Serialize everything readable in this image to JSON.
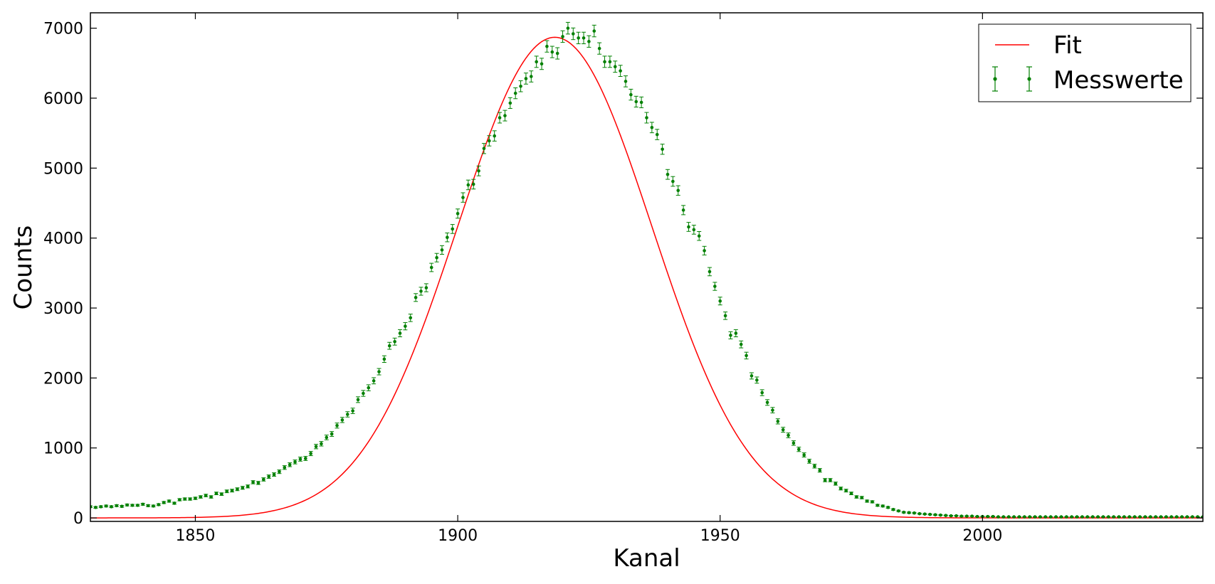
{
  "chart_data": {
    "type": "scatter",
    "title": "",
    "xlabel": "Kanal",
    "ylabel": "Counts",
    "xlim": [
      1830,
      2042
    ],
    "ylim": [
      -50,
      7220
    ],
    "xticks": [
      1850,
      1900,
      1950,
      2000
    ],
    "yticks": [
      0,
      1000,
      2000,
      3000,
      4000,
      5000,
      6000,
      7000
    ],
    "grid": false,
    "legend": {
      "location": "top-right",
      "entries": [
        "Fit",
        "Messwerte"
      ]
    },
    "colors": {
      "fit": "#ff0000",
      "measurements": "#008000"
    },
    "series": [
      {
        "name": "Fit",
        "kind": "line",
        "model": "gaussian",
        "amplitude": 6870,
        "center": 1918.5,
        "sigma": 18.5
      },
      {
        "name": "Messwerte",
        "kind": "errorbar",
        "x_start": 1830,
        "x_step": 1,
        "y": [
          160,
          150,
          160,
          170,
          160,
          175,
          165,
          185,
          180,
          180,
          195,
          175,
          170,
          190,
          220,
          240,
          210,
          260,
          270,
          270,
          280,
          300,
          320,
          300,
          350,
          340,
          380,
          390,
          410,
          430,
          450,
          510,
          500,
          550,
          590,
          620,
          660,
          720,
          760,
          800,
          840,
          850,
          920,
          1020,
          1060,
          1150,
          1200,
          1320,
          1400,
          1480,
          1530,
          1690,
          1780,
          1860,
          1960,
          2090,
          2270,
          2460,
          2520,
          2640,
          2740,
          2860,
          3150,
          3240,
          3290,
          3580,
          3720,
          3830,
          4010,
          4130,
          4350,
          4580,
          4760,
          4770,
          4960,
          5280,
          5390,
          5460,
          5720,
          5750,
          5930,
          6070,
          6170,
          6280,
          6310,
          6520,
          6490,
          6740,
          6660,
          6640,
          6880,
          7000,
          6920,
          6860,
          6860,
          6810,
          6960,
          6710,
          6520,
          6520,
          6450,
          6390,
          6240,
          6050,
          5950,
          5940,
          5720,
          5580,
          5480,
          5270,
          4910,
          4810,
          4680,
          4400,
          4160,
          4120,
          4030,
          3820,
          3520,
          3310,
          3100,
          2890,
          2610,
          2640,
          2480,
          2320,
          2030,
          1970,
          1790,
          1650,
          1540,
          1380,
          1260,
          1180,
          1070,
          980,
          900,
          810,
          740,
          680,
          540,
          540,
          490,
          420,
          390,
          350,
          300,
          290,
          240,
          230,
          180,
          170,
          150,
          120,
          100,
          80,
          75,
          70,
          60,
          55,
          50,
          45,
          40,
          35,
          30,
          30,
          25,
          25,
          25,
          20,
          20,
          20,
          20,
          15,
          15,
          15,
          15,
          15,
          15,
          15,
          15,
          15,
          15,
          15,
          15,
          15,
          15,
          15,
          15,
          15,
          15,
          15,
          15,
          15,
          15,
          15,
          15,
          15,
          15,
          15,
          15,
          15,
          15,
          15,
          15,
          15,
          15,
          15,
          15,
          15,
          15,
          15,
          15,
          15,
          15,
          15,
          15,
          15
        ]
      }
    ]
  }
}
